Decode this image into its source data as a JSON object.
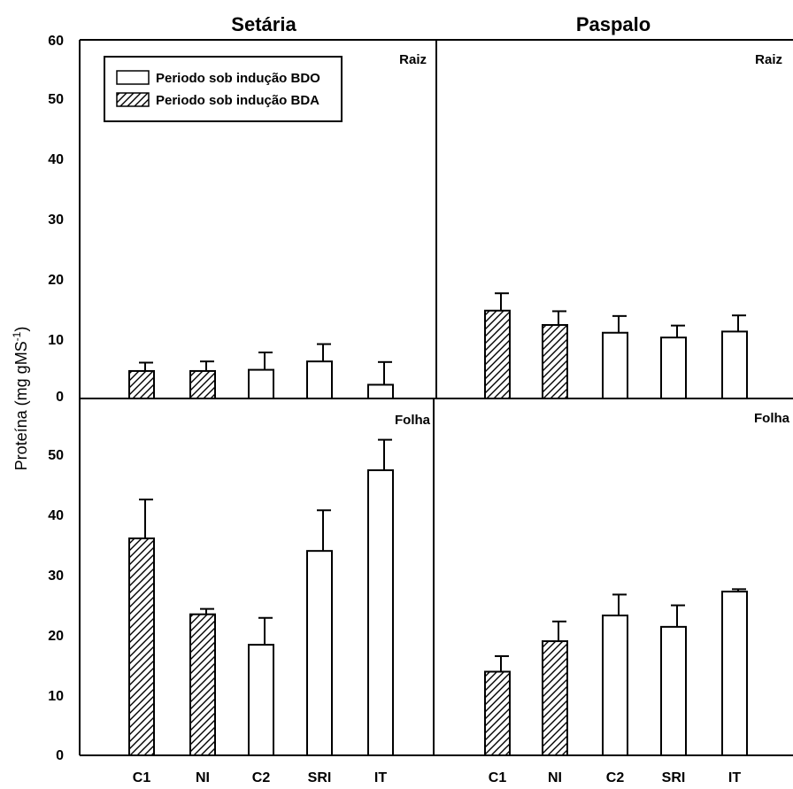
{
  "chart_data": {
    "type": "bar",
    "ylabel": "Proteína (mg gMS",
    "ylabel_sup": "-1",
    "ylabel_close": ")",
    "ylim": [
      0,
      60
    ],
    "yticks": [
      "0",
      "10",
      "20",
      "30",
      "40",
      "50",
      "60"
    ],
    "categories": [
      "C1",
      "NI",
      "C2",
      "SRI",
      "IT"
    ],
    "legend": {
      "placement": "top-left",
      "entries": [
        {
          "label": "Periodo sob indução BDO",
          "pattern": "plain"
        },
        {
          "label": "Periodo sob indução BDA",
          "pattern": "hatched"
        }
      ]
    },
    "patterns": [
      "hatched",
      "hatched",
      "plain",
      "plain",
      "plain"
    ],
    "panels": [
      {
        "column": "Setária",
        "tissue": "Raiz",
        "values": [
          4.6,
          4.6,
          4.8,
          6.2,
          2.3
        ],
        "errors": [
          1.4,
          1.6,
          2.9,
          2.9,
          3.8
        ]
      },
      {
        "column": "Paspalo",
        "tissue": "Raiz",
        "values": [
          14.7,
          12.3,
          11.0,
          10.2,
          11.2
        ],
        "errors": [
          2.9,
          2.3,
          2.8,
          2.0,
          2.7
        ]
      },
      {
        "column": "Setária",
        "tissue": "Folha",
        "values": [
          36.3,
          23.6,
          18.5,
          34.2,
          47.7
        ],
        "errors": [
          6.5,
          0.9,
          4.5,
          6.8,
          5.1
        ]
      },
      {
        "column": "Paspalo",
        "tissue": "Folha",
        "values": [
          14.0,
          19.1,
          23.4,
          21.5,
          27.4
        ],
        "errors": [
          2.6,
          3.3,
          3.5,
          3.6,
          0.4
        ]
      }
    ],
    "column_titles": [
      "Setária",
      "Paspalo"
    ],
    "grid": false
  }
}
